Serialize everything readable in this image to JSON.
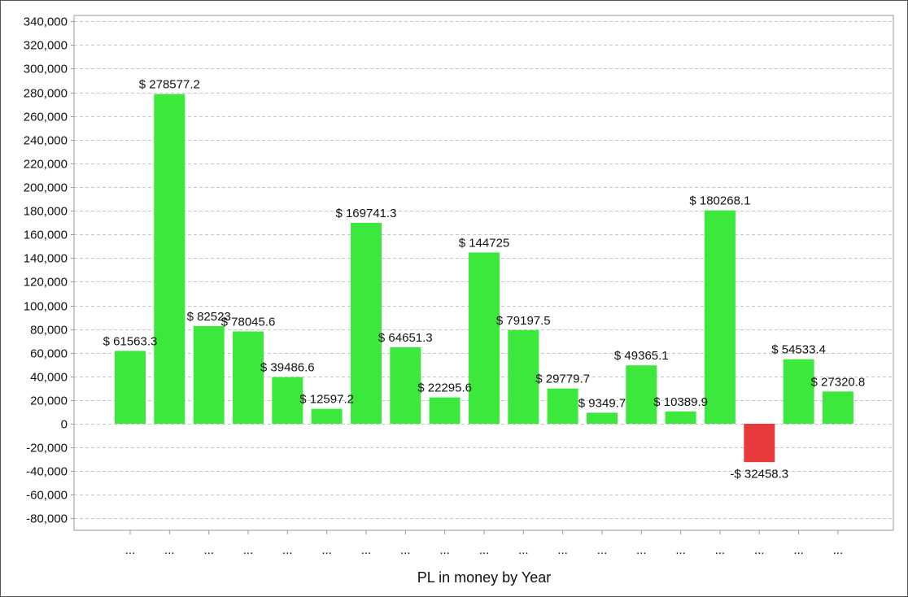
{
  "chart_data": {
    "type": "bar",
    "title": "",
    "xlabel": "PL in money by Year",
    "ylabel": "",
    "ylim": [
      -90000,
      345000
    ],
    "y_ticks": [
      340000,
      320000,
      300000,
      280000,
      260000,
      240000,
      220000,
      200000,
      180000,
      160000,
      140000,
      120000,
      100000,
      80000,
      60000,
      40000,
      20000,
      0,
      -20000,
      -40000,
      -60000,
      -80000
    ],
    "y_tick_labels": [
      "340,000",
      "320,000",
      "300,000",
      "280,000",
      "260,000",
      "240,000",
      "220,000",
      "200,000",
      "180,000",
      "160,000",
      "140,000",
      "120,000",
      "100,000",
      "80,000",
      "60,000",
      "40,000",
      "20,000",
      "0",
      "-20,000",
      "-40,000",
      "-60,000",
      "-80,000"
    ],
    "categories": [
      "...",
      "...",
      "...",
      "...",
      "...",
      "...",
      "...",
      "...",
      "...",
      "...",
      "...",
      "...",
      "...",
      "...",
      "...",
      "...",
      "...",
      "...",
      "..."
    ],
    "values": [
      61563.3,
      278577.2,
      82523,
      78045.6,
      39486.6,
      12597.2,
      169741.3,
      64651.3,
      22295.6,
      144725,
      79197.5,
      29779.7,
      9349.7,
      49365.1,
      10389.9,
      180268.1,
      -32458.3,
      54533.4,
      27320.8
    ],
    "data_labels": [
      "$ 61563.3",
      "$ 278577.2",
      "$ 82523",
      "$ 78045.6",
      "$ 39486.6",
      "$ 12597.2",
      "$ 169741.3",
      "$ 64651.3",
      "$ 22295.6",
      "$ 144725",
      "$ 79197.5",
      "$ 29779.7",
      "$ 9349.7",
      "$ 49365.1",
      "$ 10389.9",
      "$ 180268.1",
      "-$ 32458.3",
      "$ 54533.4",
      "$ 27320.8"
    ],
    "colors": {
      "positive": "#3de83d",
      "negative": "#e8393d",
      "grid": "#c8c8c8",
      "axis": "#999999"
    },
    "grid": true,
    "legend": "none"
  }
}
